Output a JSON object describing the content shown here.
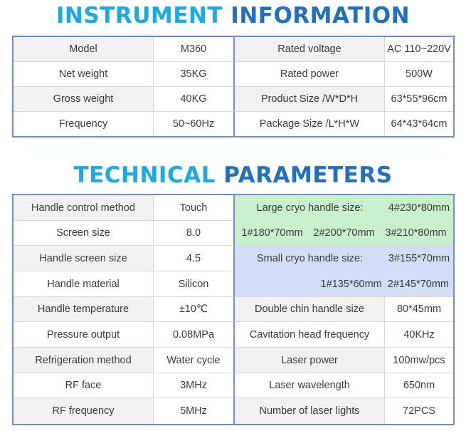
{
  "section1": {
    "title_part1": "INSTRUMENT",
    "title_part2": "INFORMATION",
    "rows": [
      [
        "Model",
        "M360",
        "Rated voltage",
        "AC 110~220V"
      ],
      [
        "Net weight",
        "35KG",
        "Rated power",
        "500W"
      ],
      [
        "Gross weight",
        "40KG",
        "Product Size /W*D*H",
        "63*55*96cm"
      ],
      [
        "Frequency",
        "50~60Hz",
        "Package Size /L*H*W",
        "64*43*64cm"
      ]
    ]
  },
  "section2": {
    "title_part1": "TECHNICAL",
    "title_part2": "PARAMETERS",
    "left_rows": [
      [
        "Handle control method",
        "Touch"
      ],
      [
        "Screen size",
        "8.0"
      ],
      [
        "Handle screen size",
        "4.5"
      ],
      [
        "Handle material",
        "Silicon"
      ],
      [
        "Handle temperature",
        "±10℃"
      ],
      [
        "Pressure output",
        "0.08MPa"
      ],
      [
        "Refrigeration method",
        "Water cycle"
      ],
      [
        "RF face",
        "3MHz"
      ],
      [
        "RF frequency",
        "5MHz"
      ]
    ],
    "large_cryo_label": "Large cryo handle size:",
    "large_cryo_values": [
      "4#230*80mm",
      "1#180*70mm",
      "2#200*70mm",
      "3#210*80mm"
    ],
    "small_cryo_label": "Small cryo handle size:",
    "small_cryo_values": [
      "3#155*70mm",
      "1#135*60mm",
      "2#145*70mm"
    ],
    "right_rows": [
      [
        "Double chin handle size",
        "80*45mm"
      ],
      [
        "Cavitation head frequency",
        "40KHz"
      ],
      [
        "Laser power",
        "100mw/pcs"
      ],
      [
        "Laser wavelength",
        "650nm"
      ],
      [
        "Number of laser lights",
        "72PCS"
      ]
    ]
  },
  "colors": {
    "title_light": "#19a9e6",
    "title_dark": "#1f6fc4",
    "border": "#6f8fc8",
    "cryo_large_bg": "#c9f0cc",
    "cryo_small_bg": "#d2ddf6"
  }
}
